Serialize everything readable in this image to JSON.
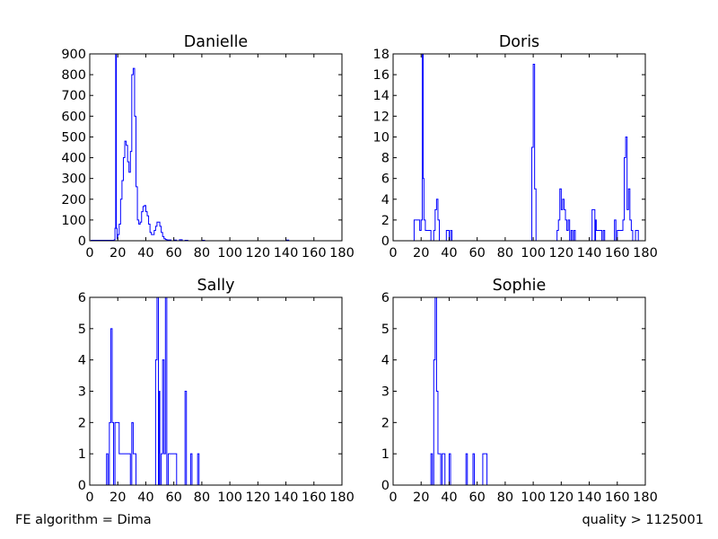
{
  "footer": {
    "left": "FE algorithm = Dima",
    "right": "quality > 1125001"
  },
  "colors": {
    "series": "#0000ff",
    "axes": "#000000",
    "background": "#ffffff"
  },
  "chart_data": [
    {
      "type": "step-histogram",
      "title": "Danielle",
      "xlim": [
        0,
        180
      ],
      "ylim": [
        0,
        900
      ],
      "xticks": [
        0,
        20,
        40,
        60,
        80,
        100,
        120,
        140,
        160,
        180
      ],
      "yticks": [
        0,
        100,
        200,
        300,
        400,
        500,
        600,
        700,
        800,
        900
      ],
      "grid": false,
      "series": [
        {
          "points": [
            [
              0,
              0
            ],
            [
              1,
              2
            ],
            [
              17,
              2
            ],
            [
              17.5,
              5
            ],
            [
              18,
              60
            ],
            [
              18.5,
              900
            ],
            [
              19,
              60
            ],
            [
              19.5,
              10
            ],
            [
              20,
              30
            ],
            [
              21,
              80
            ],
            [
              22,
              200
            ],
            [
              23,
              290
            ],
            [
              24,
              400
            ],
            [
              25,
              480
            ],
            [
              26,
              460
            ],
            [
              27,
              380
            ],
            [
              28,
              330
            ],
            [
              29,
              430
            ],
            [
              30,
              800
            ],
            [
              31,
              830
            ],
            [
              32,
              600
            ],
            [
              33,
              260
            ],
            [
              34,
              100
            ],
            [
              35,
              80
            ],
            [
              36,
              90
            ],
            [
              37,
              140
            ],
            [
              38,
              165
            ],
            [
              39,
              170
            ],
            [
              40,
              140
            ],
            [
              41,
              120
            ],
            [
              42,
              80
            ],
            [
              43,
              40
            ],
            [
              44,
              30
            ],
            [
              45,
              30
            ],
            [
              46,
              50
            ],
            [
              47,
              70
            ],
            [
              48,
              90
            ],
            [
              49,
              90
            ],
            [
              50,
              70
            ],
            [
              51,
              40
            ],
            [
              52,
              20
            ],
            [
              53,
              10
            ],
            [
              54,
              6
            ],
            [
              55,
              4
            ],
            [
              58,
              0
            ],
            [
              60,
              3
            ],
            [
              62,
              0
            ],
            [
              64,
              5
            ],
            [
              66,
              0
            ],
            [
              68,
              2
            ],
            [
              70,
              0
            ],
            [
              80,
              2
            ],
            [
              82,
              0
            ],
            [
              140,
              3
            ],
            [
              142,
              0
            ],
            [
              180,
              0
            ]
          ]
        }
      ]
    },
    {
      "type": "step-histogram",
      "title": "Doris",
      "xlim": [
        0,
        180
      ],
      "ylim": [
        0,
        18
      ],
      "xticks": [
        0,
        20,
        40,
        60,
        80,
        100,
        120,
        140,
        160,
        180
      ],
      "yticks": [
        0,
        2,
        4,
        6,
        8,
        10,
        12,
        14,
        16,
        18
      ],
      "grid": false,
      "series": [
        {
          "points": [
            [
              0,
              0
            ],
            [
              15,
              2
            ],
            [
              18,
              2
            ],
            [
              19,
              1
            ],
            [
              20,
              2
            ],
            [
              20.8,
              18
            ],
            [
              21.5,
              6
            ],
            [
              22,
              2
            ],
            [
              23,
              1
            ],
            [
              27,
              0
            ],
            [
              28,
              0
            ],
            [
              29,
              1
            ],
            [
              30,
              3
            ],
            [
              31,
              4
            ],
            [
              32,
              2
            ],
            [
              33,
              0
            ],
            [
              38,
              1
            ],
            [
              40,
              0
            ],
            [
              41,
              1
            ],
            [
              42,
              0
            ],
            [
              99,
              9
            ],
            [
              100,
              17
            ],
            [
              101,
              5
            ],
            [
              102,
              0
            ],
            [
              117,
              1
            ],
            [
              118,
              2
            ],
            [
              119,
              5
            ],
            [
              120,
              3
            ],
            [
              121,
              4
            ],
            [
              122,
              3
            ],
            [
              123,
              2
            ],
            [
              124,
              1
            ],
            [
              125,
              2
            ],
            [
              126,
              0
            ],
            [
              127,
              1
            ],
            [
              128,
              0
            ],
            [
              129,
              1
            ],
            [
              130,
              0
            ],
            [
              142,
              3
            ],
            [
              144,
              0
            ],
            [
              144.5,
              2
            ],
            [
              145,
              1
            ],
            [
              149,
              0
            ],
            [
              150,
              1
            ],
            [
              151,
              0
            ],
            [
              158,
              2
            ],
            [
              159,
              0
            ],
            [
              160,
              1
            ],
            [
              164,
              2
            ],
            [
              165,
              8
            ],
            [
              166,
              10
            ],
            [
              167,
              3
            ],
            [
              168,
              5
            ],
            [
              169,
              2
            ],
            [
              170,
              1
            ],
            [
              171,
              0
            ],
            [
              173,
              1
            ],
            [
              175,
              0
            ],
            [
              180,
              0
            ]
          ]
        }
      ]
    },
    {
      "type": "step-histogram",
      "title": "Sally",
      "xlim": [
        0,
        180
      ],
      "ylim": [
        0,
        6
      ],
      "xticks": [
        0,
        20,
        40,
        60,
        80,
        100,
        120,
        140,
        160,
        180
      ],
      "yticks": [
        0,
        1,
        2,
        3,
        4,
        5,
        6
      ],
      "grid": false,
      "series": [
        {
          "points": [
            [
              0,
              0
            ],
            [
              12,
              1
            ],
            [
              13,
              0
            ],
            [
              14,
              2
            ],
            [
              15,
              5
            ],
            [
              16,
              2
            ],
            [
              17,
              0
            ],
            [
              18,
              2
            ],
            [
              21,
              1
            ],
            [
              29,
              0
            ],
            [
              30,
              2
            ],
            [
              31,
              1
            ],
            [
              33,
              0
            ],
            [
              47,
              4
            ],
            [
              48,
              6
            ],
            [
              49,
              0
            ],
            [
              49.5,
              3
            ],
            [
              50,
              0
            ],
            [
              51,
              1
            ],
            [
              52,
              4
            ],
            [
              53,
              1
            ],
            [
              54,
              6
            ],
            [
              55,
              0
            ],
            [
              56,
              1
            ],
            [
              57,
              1
            ],
            [
              62,
              0
            ],
            [
              68,
              3
            ],
            [
              69,
              0
            ],
            [
              72,
              1
            ],
            [
              73,
              0
            ],
            [
              77,
              1
            ],
            [
              78,
              0
            ],
            [
              180,
              0
            ]
          ]
        }
      ]
    },
    {
      "type": "step-histogram",
      "title": "Sophie",
      "xlim": [
        0,
        180
      ],
      "ylim": [
        0,
        6
      ],
      "xticks": [
        0,
        20,
        40,
        60,
        80,
        100,
        120,
        140,
        160,
        180
      ],
      "yticks": [
        0,
        1,
        2,
        3,
        4,
        5,
        6
      ],
      "grid": false,
      "series": [
        {
          "points": [
            [
              0,
              0
            ],
            [
              27,
              1
            ],
            [
              28,
              0
            ],
            [
              29,
              4
            ],
            [
              30,
              6
            ],
            [
              31,
              3
            ],
            [
              32,
              1
            ],
            [
              34,
              0
            ],
            [
              35,
              1
            ],
            [
              37,
              0
            ],
            [
              40,
              1
            ],
            [
              41,
              0
            ],
            [
              52,
              1
            ],
            [
              53,
              0
            ],
            [
              57,
              1
            ],
            [
              58,
              0
            ],
            [
              64,
              1
            ],
            [
              67,
              0
            ],
            [
              180,
              0
            ]
          ]
        }
      ]
    }
  ]
}
